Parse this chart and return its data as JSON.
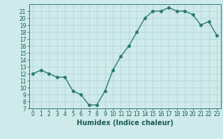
{
  "x": [
    0,
    1,
    2,
    3,
    4,
    5,
    6,
    7,
    8,
    9,
    10,
    11,
    12,
    13,
    14,
    15,
    16,
    17,
    18,
    19,
    20,
    21,
    22,
    23
  ],
  "y": [
    12,
    12.5,
    12,
    11.5,
    11.5,
    9.5,
    9,
    7.5,
    7.5,
    9.5,
    12.5,
    14.5,
    16,
    18,
    20,
    21,
    21,
    21.5,
    21,
    21,
    20.5,
    19,
    19.5,
    17.5
  ],
  "line_color": "#2d7a6e",
  "marker_color": "#2d7a6e",
  "bg_color": "#ceeaea",
  "grid_color": "#aed4d4",
  "axis_color": "#2d7a6e",
  "xlabel": "Humidex (Indice chaleur)",
  "ylim": [
    7,
    22
  ],
  "xlim": [
    -0.5,
    23.5
  ],
  "yticks": [
    7,
    8,
    9,
    10,
    11,
    12,
    13,
    14,
    15,
    16,
    17,
    18,
    19,
    20,
    21
  ],
  "xticks": [
    0,
    1,
    2,
    3,
    4,
    5,
    6,
    7,
    8,
    9,
    10,
    11,
    12,
    13,
    14,
    15,
    16,
    17,
    18,
    19,
    20,
    21,
    22,
    23
  ],
  "font_color": "#1a5c52",
  "xlabel_fontsize": 7,
  "tick_fontsize": 5.5,
  "marker_size": 2.5,
  "line_width": 1.0
}
